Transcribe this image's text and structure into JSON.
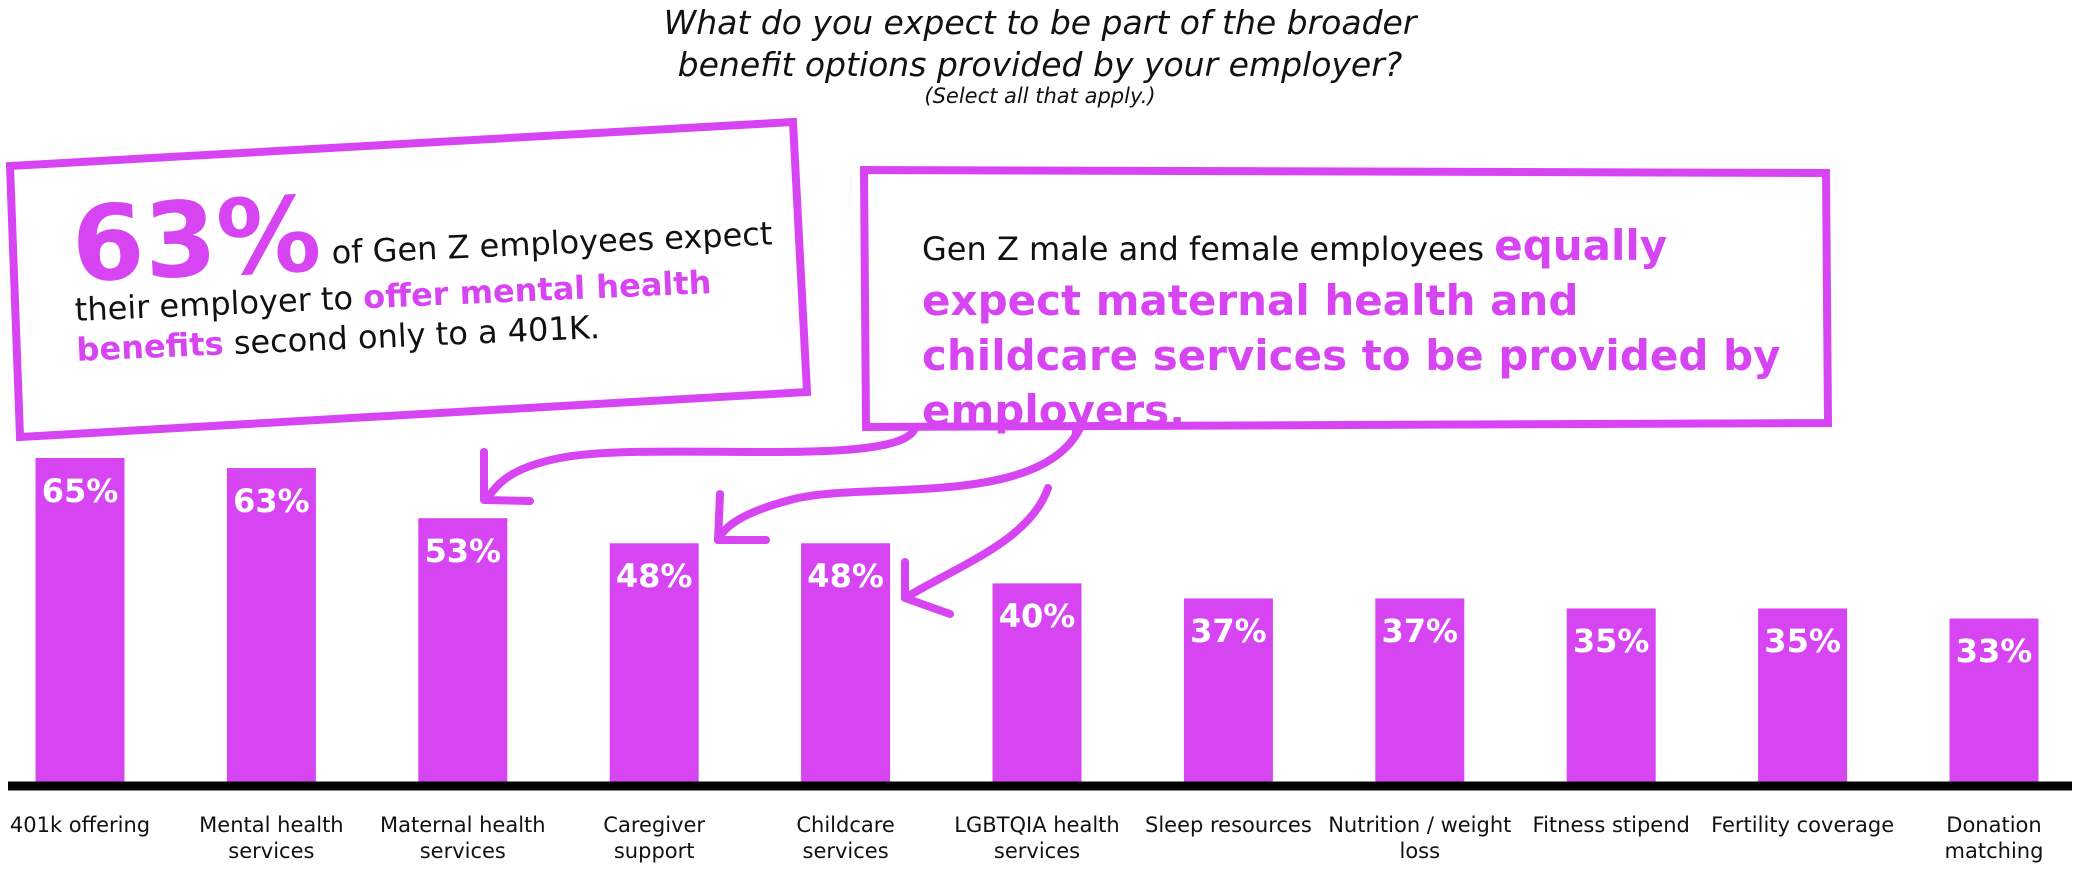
{
  "chart_data": {
    "type": "bar",
    "title": "What do you expect to be part of the broader benefit options provided by your employer?",
    "subtitle": "(Select all that apply.)",
    "categories": [
      "401k offering",
      "Mental health services",
      "Maternal health services",
      "Caregiver support",
      "Childcare services",
      "LGBTQIA health services",
      "Sleep resources",
      "Nutrition / weight loss",
      "Fitness stipend",
      "Fertility coverage",
      "Donation matching"
    ],
    "values": [
      65,
      63,
      53,
      48,
      48,
      40,
      37,
      37,
      35,
      35,
      33
    ],
    "value_labels": [
      "65%",
      "63%",
      "53%",
      "48%",
      "48%",
      "40%",
      "37%",
      "37%",
      "35%",
      "35%",
      "33%"
    ],
    "color": "#d745f3",
    "ylim": [
      0,
      65
    ],
    "annotations": [
      {
        "stat": "63%",
        "text": "of Gen Z employees expect their employer to",
        "highlight": "offer mental health benefits",
        "tail": "second only to a 401K."
      },
      {
        "text": "Gen Z male and female employees",
        "highlight": "equally expect maternal health and childcare services to be provided by employers."
      }
    ]
  }
}
